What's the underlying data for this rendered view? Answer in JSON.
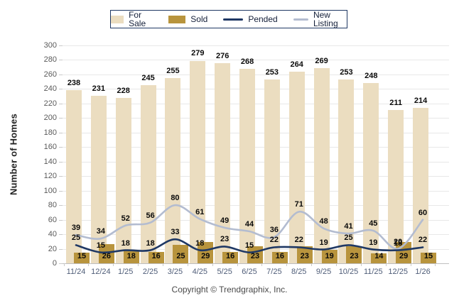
{
  "legend": {
    "items": [
      {
        "label": "For Sale",
        "type": "bar",
        "color": "#EBDDC0"
      },
      {
        "label": "Sold",
        "type": "bar",
        "color": "#B8943D"
      },
      {
        "label": "Pended",
        "type": "line",
        "color": "#1F3864"
      },
      {
        "label": "New Listing",
        "type": "line",
        "color": "#B3BCD0"
      }
    ]
  },
  "y_axis": {
    "title": "Number of Homes",
    "min": 0,
    "max": 300,
    "step": 20
  },
  "footer": {
    "text": "Copyright © Trendgraphix, Inc."
  },
  "chart_data": {
    "type": "bar",
    "subtype": "combo-bar-line",
    "title": "",
    "xlabel": "",
    "ylabel": "Number of Homes",
    "ylim": [
      0,
      300
    ],
    "ytick_step": 20,
    "grid": "horizontal",
    "legend_position": "top",
    "categories": [
      "11/24",
      "12/24",
      "1/25",
      "2/25",
      "3/25",
      "4/25",
      "5/25",
      "6/25",
      "7/25",
      "8/25",
      "9/25",
      "10/25",
      "11/25",
      "12/25",
      "1/26"
    ],
    "series": [
      {
        "name": "For Sale",
        "type": "bar",
        "color": "#EBDDC0",
        "values": [
          238,
          231,
          228,
          245,
          255,
          279,
          276,
          268,
          253,
          264,
          269,
          253,
          248,
          211,
          214
        ]
      },
      {
        "name": "Sold",
        "type": "bar",
        "color": "#B8943D",
        "values": [
          15,
          26,
          18,
          16,
          25,
          29,
          16,
          23,
          16,
          23,
          19,
          23,
          14,
          29,
          15
        ]
      },
      {
        "name": "Pended",
        "type": "line",
        "color": "#1F3864",
        "values": [
          25,
          15,
          18,
          18,
          33,
          18,
          23,
          15,
          22,
          22,
          19,
          25,
          19,
          18,
          22
        ]
      },
      {
        "name": "New Listing",
        "type": "line",
        "color": "#B3BCD0",
        "values": [
          39,
          34,
          52,
          56,
          80,
          61,
          49,
          44,
          36,
          71,
          48,
          41,
          45,
          20,
          60
        ]
      }
    ]
  }
}
